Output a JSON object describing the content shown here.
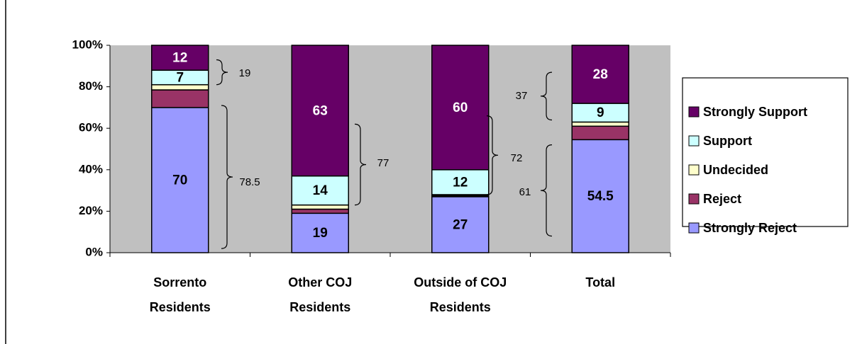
{
  "chart_data": {
    "type": "stacked_bar_100",
    "categories": [
      [
        "Sorrento",
        "Residents"
      ],
      [
        "Other COJ",
        "Residents"
      ],
      [
        "Outside of COJ",
        "Residents"
      ],
      [
        "Total"
      ]
    ],
    "series": [
      {
        "name": "Strongly Reject",
        "color": "#9999ff",
        "values": [
          70,
          19,
          27,
          54.5
        ],
        "value_labels": [
          "70",
          "19",
          "27",
          "54.5"
        ]
      },
      {
        "name": "Reject",
        "color": "#993366",
        "values": [
          8.5,
          2,
          0.5,
          6.5
        ],
        "value_labels": [
          null,
          null,
          null,
          null
        ]
      },
      {
        "name": "Undecided",
        "color": "#ffffcc",
        "values": [
          2.5,
          2,
          0.5,
          2
        ],
        "value_labels": [
          null,
          null,
          null,
          null
        ]
      },
      {
        "name": "Support",
        "color": "#ccffff",
        "values": [
          7,
          14,
          12,
          9
        ],
        "value_labels": [
          "7",
          "14",
          "12",
          "9"
        ]
      },
      {
        "name": "Strongly Support",
        "color": "#660066",
        "values": [
          12,
          63,
          60,
          28
        ],
        "value_labels": [
          "12",
          "63",
          "60",
          "28"
        ]
      }
    ],
    "ylim": [
      0,
      100
    ],
    "yticks": [
      {
        "value": 0,
        "label": "0%"
      },
      {
        "value": 20,
        "label": "20%"
      },
      {
        "value": 40,
        "label": "40%"
      },
      {
        "value": 60,
        "label": "60%"
      },
      {
        "value": 80,
        "label": "80%"
      },
      {
        "value": 100,
        "label": "100%"
      }
    ],
    "annotations": [
      "19",
      "78.5",
      "77",
      "72",
      "37",
      "61"
    ],
    "legend": "right"
  }
}
